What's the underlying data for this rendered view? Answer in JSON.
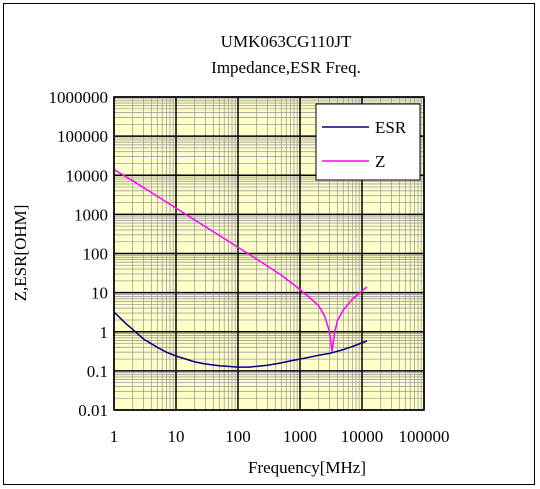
{
  "chart_data": {
    "type": "line",
    "title": "UMK063CG110JT",
    "subtitle": "Impedance,ESR Freq.",
    "xlabel": "Frequency[MHz]",
    "ylabel": "Z,ESR[OHM]",
    "x_scale": "log",
    "y_scale": "log",
    "xlim": [
      1,
      100000
    ],
    "ylim": [
      0.01,
      1000000
    ],
    "x_ticks": [
      1,
      10,
      100,
      1000,
      10000,
      100000
    ],
    "x_tick_labels": [
      "1",
      "10",
      "100",
      "1000",
      "10000",
      "100000"
    ],
    "y_ticks": [
      0.01,
      0.1,
      1,
      10,
      100,
      1000,
      10000,
      100000,
      1000000
    ],
    "y_tick_labels": [
      "0.01",
      "0.1",
      "1",
      "10",
      "100",
      "1000",
      "10000",
      "100000",
      "1000000"
    ],
    "grid": true,
    "legend_position": "top-right",
    "colors": {
      "plot_background": "#ffffc8",
      "minor_grid": "#a0a0a0",
      "major_grid": "#000000"
    },
    "series": [
      {
        "name": "ESR",
        "color": "#000080",
        "x": [
          1,
          1.5,
          2,
          3,
          5,
          7,
          10,
          20,
          30,
          50,
          70,
          100,
          150,
          200,
          300,
          500,
          700,
          1000,
          2000,
          3000,
          5000,
          7000,
          12000
        ],
        "y": [
          3.2,
          1.7,
          1.15,
          0.65,
          0.4,
          0.3,
          0.24,
          0.17,
          0.15,
          0.135,
          0.13,
          0.125,
          0.125,
          0.13,
          0.14,
          0.16,
          0.18,
          0.2,
          0.25,
          0.28,
          0.35,
          0.42,
          0.58
        ]
      },
      {
        "name": "Z",
        "color": "#ff00ff",
        "x": [
          1,
          2,
          5,
          10,
          20,
          50,
          100,
          200,
          500,
          1000,
          1500,
          2000,
          2500,
          3000,
          3300,
          3600,
          4000,
          5000,
          7000,
          10000,
          12000
        ],
        "y": [
          14000,
          7200,
          2900,
          1450,
          720,
          290,
          145,
          72,
          28,
          12,
          7,
          4.6,
          2.5,
          1,
          0.32,
          0.9,
          1.9,
          3.6,
          6.8,
          11,
          14
        ]
      }
    ]
  }
}
